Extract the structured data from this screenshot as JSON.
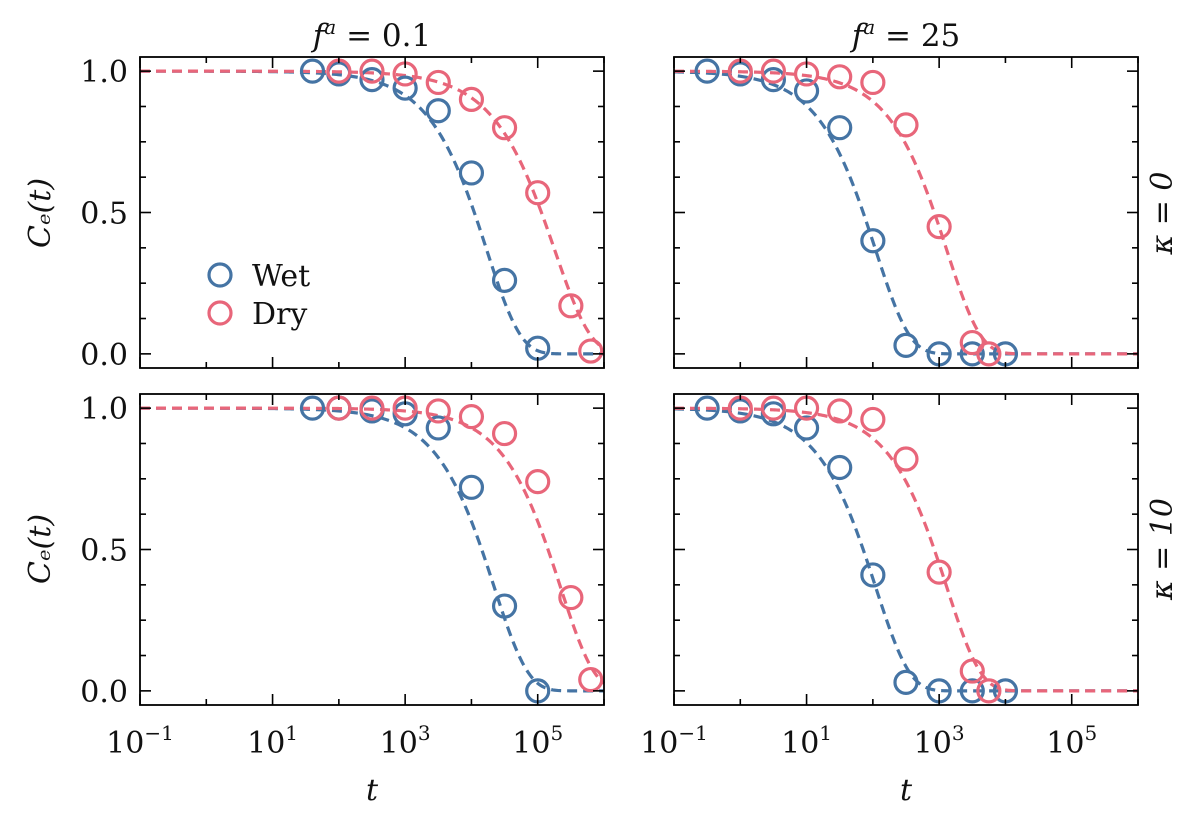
{
  "figure": {
    "columns": [
      {
        "title_base": "f",
        "title_sup": "a",
        "title_rest": " = 0.1"
      },
      {
        "title_base": "f",
        "title_sup": "a",
        "title_rest": " = 25"
      }
    ],
    "rows": [
      {
        "label": "κ = 0"
      },
      {
        "label": "κ = 10"
      }
    ],
    "xlabel": "t",
    "ylabel": "Cₑ(t)",
    "legend": [
      {
        "name": "Wet",
        "color": "#4574a4"
      },
      {
        "name": "Dry",
        "color": "#e8667a"
      }
    ],
    "x_ticks": [
      {
        "base": "10",
        "exp": "−1"
      },
      {
        "base": "10",
        "exp": "1"
      },
      {
        "base": "10",
        "exp": "3"
      },
      {
        "base": "10",
        "exp": "5"
      }
    ],
    "y_ticks": [
      "0.0",
      "0.5",
      "1.0"
    ]
  },
  "chart_data": [
    {
      "type": "scatter",
      "title": "f^a = 0.1",
      "row": "κ = 0",
      "xscale": "log",
      "xlim": [
        0.1,
        1000000
      ],
      "ylim": [
        -0.05,
        1.05
      ],
      "xlabel": "",
      "ylabel": "C_e(t)",
      "series": [
        {
          "name": "Wet",
          "color": "#4574a4",
          "fit_tau": 17000,
          "fit_beta": 0.85,
          "x": [
            40,
            100,
            316,
            1000,
            3162,
            10000,
            31623,
            100000
          ],
          "y": [
            1.0,
            0.99,
            0.97,
            0.94,
            0.86,
            0.64,
            0.26,
            0.02
          ]
        },
        {
          "name": "Dry",
          "color": "#e8667a",
          "fit_tau": 180000,
          "fit_beta": 0.8,
          "x": [
            100,
            316,
            1000,
            3162,
            10000,
            31623,
            100000,
            316228,
            631000
          ],
          "y": [
            1.0,
            1.0,
            0.99,
            0.96,
            0.9,
            0.8,
            0.57,
            0.17,
            0.01
          ]
        }
      ]
    },
    {
      "type": "scatter",
      "title": "f^a = 25",
      "row": "κ = 0",
      "xscale": "log",
      "xlim": [
        0.1,
        1000000
      ],
      "ylim": [
        -0.05,
        1.05
      ],
      "xlabel": "",
      "ylabel": "",
      "series": [
        {
          "name": "Wet",
          "color": "#4574a4",
          "fit_tau": 110,
          "fit_beta": 0.85,
          "x": [
            0.316,
            1,
            3.16,
            10,
            31.6,
            100,
            316,
            1000,
            3162,
            10000
          ],
          "y": [
            1.0,
            0.99,
            0.97,
            0.93,
            0.8,
            0.4,
            0.03,
            0.0,
            0.0,
            0.0
          ]
        },
        {
          "name": "Dry",
          "color": "#e8667a",
          "fit_tau": 1300,
          "fit_beta": 0.85,
          "x": [
            1,
            3.16,
            10,
            31.6,
            100,
            316,
            1000,
            3162,
            5623
          ],
          "y": [
            1.0,
            1.0,
            0.99,
            0.98,
            0.96,
            0.81,
            0.45,
            0.04,
            0.0
          ]
        }
      ]
    },
    {
      "type": "scatter",
      "title": "f^a = 0.1",
      "row": "κ = 10",
      "xscale": "log",
      "xlim": [
        0.1,
        1000000
      ],
      "ylim": [
        -0.05,
        1.05
      ],
      "xlabel": "t",
      "ylabel": "C_e(t)",
      "series": [
        {
          "name": "Wet",
          "color": "#4574a4",
          "fit_tau": 22000,
          "fit_beta": 0.85,
          "x": [
            40,
            100,
            316,
            1000,
            3162,
            10000,
            31623,
            100000
          ],
          "y": [
            1.0,
            1.0,
            0.99,
            0.98,
            0.93,
            0.72,
            0.3,
            0.0
          ]
        },
        {
          "name": "Dry",
          "color": "#e8667a",
          "fit_tau": 220000,
          "fit_beta": 0.85,
          "x": [
            100,
            316,
            1000,
            3162,
            10000,
            31623,
            100000,
            316228,
            631000
          ],
          "y": [
            1.0,
            1.0,
            1.0,
            0.99,
            0.97,
            0.91,
            0.74,
            0.33,
            0.04
          ]
        }
      ]
    },
    {
      "type": "scatter",
      "title": "f^a = 25",
      "row": "κ = 10",
      "xscale": "log",
      "xlim": [
        0.1,
        1000000
      ],
      "ylim": [
        -0.05,
        1.05
      ],
      "xlabel": "t",
      "ylabel": "",
      "series": [
        {
          "name": "Wet",
          "color": "#4574a4",
          "fit_tau": 110,
          "fit_beta": 0.85,
          "x": [
            0.316,
            1,
            3.16,
            10,
            31.6,
            100,
            316,
            1000,
            3162,
            10000
          ],
          "y": [
            1.0,
            0.99,
            0.98,
            0.93,
            0.79,
            0.41,
            0.03,
            0.0,
            0.0,
            0.0
          ]
        },
        {
          "name": "Dry",
          "color": "#e8667a",
          "fit_tau": 1300,
          "fit_beta": 0.85,
          "x": [
            1,
            3.16,
            10,
            31.6,
            100,
            316,
            1000,
            3162,
            5623
          ],
          "y": [
            1.0,
            1.0,
            1.0,
            0.99,
            0.96,
            0.82,
            0.42,
            0.07,
            0.0
          ]
        }
      ]
    }
  ]
}
